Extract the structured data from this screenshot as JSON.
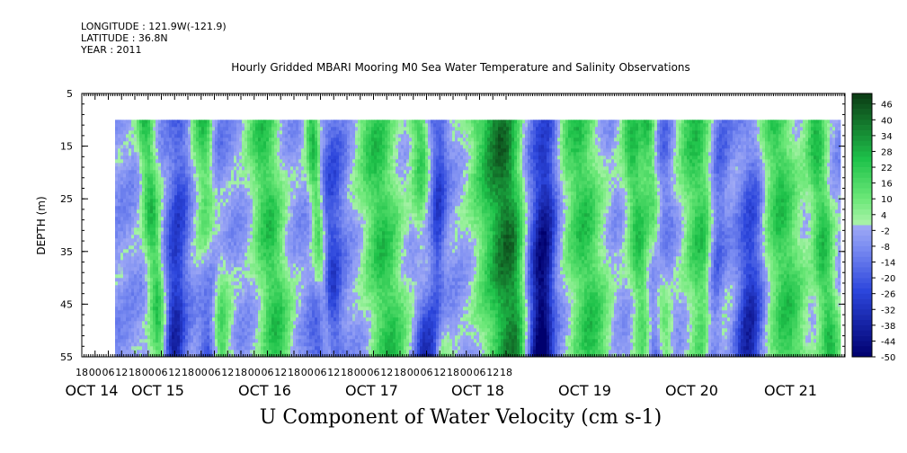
{
  "header": {
    "longitude": "LONGITUDE : 121.9W(-121.9)",
    "latitude": "LATITUDE : 36.8N",
    "year": "YEAR : 2011"
  },
  "chart_data": {
    "type": "heatmap",
    "title": "Hourly Gridded MBARI Mooring M0 Sea Water Temperature and Salinity Observations",
    "xlabel": "",
    "ylabel": "DEPTH (m)",
    "bottom_title": "U Component of Water Velocity (cm s-1)",
    "x_hour_ticks": [
      "18",
      "00",
      "06",
      "12",
      "18",
      "00",
      "06",
      "12",
      "18",
      "00",
      "06",
      "12",
      "18",
      "00",
      "06",
      "12",
      "18",
      "00",
      "06",
      "12",
      "18",
      "00",
      "06",
      "12",
      "18",
      "00",
      "06",
      "12",
      "18",
      "00",
      "06",
      "12",
      "18"
    ],
    "x_day_labels": [
      "OCT 14",
      "OCT 15",
      "OCT 16",
      "OCT 17",
      "OCT 18",
      "OCT 19",
      "OCT 20",
      "OCT 21"
    ],
    "y_ticks": [
      "5",
      "15",
      "25",
      "35",
      "45",
      "55"
    ],
    "y_range": [
      5,
      55
    ],
    "y_inverted": true,
    "data_depth_range": [
      10,
      55
    ],
    "colorbar": {
      "labels": [
        "46",
        "40",
        "34",
        "28",
        "22",
        "16",
        "10",
        "4",
        "-2",
        "-8",
        "-14",
        "-20",
        "-26",
        "-32",
        "-38",
        "-44",
        "-50"
      ],
      "range": [
        -50,
        50
      ]
    },
    "colors": {
      "low": "#00006e",
      "mid_low": "#7d8ef2",
      "zero": "#a6f2a6",
      "mid_high": "#1ec24a",
      "high": "#0b3a14"
    }
  }
}
